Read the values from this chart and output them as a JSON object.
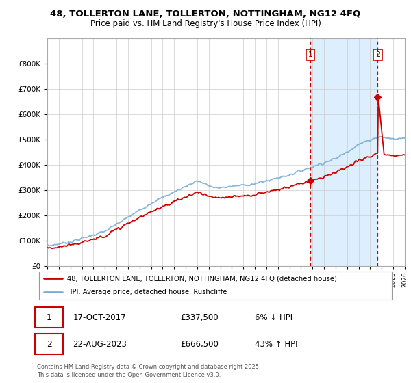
{
  "title_line1": "48, TOLLERTON LANE, TOLLERTON, NOTTINGHAM, NG12 4FQ",
  "title_line2": "Price paid vs. HM Land Registry's House Price Index (HPI)",
  "legend_line1": "48, TOLLERTON LANE, TOLLERTON, NOTTINGHAM, NG12 4FQ (detached house)",
  "legend_line2": "HPI: Average price, detached house, Rushcliffe",
  "transaction1_label": "1",
  "transaction1_date": "17-OCT-2017",
  "transaction1_price": "£337,500",
  "transaction1_hpi": "6% ↓ HPI",
  "transaction2_label": "2",
  "transaction2_date": "22-AUG-2023",
  "transaction2_price": "£666,500",
  "transaction2_hpi": "43% ↑ HPI",
  "footer": "Contains HM Land Registry data © Crown copyright and database right 2025.\nThis data is licensed under the Open Government Licence v3.0.",
  "red_color": "#cc0000",
  "blue_color": "#7aadd4",
  "shaded_color": "#ddeeff",
  "grid_color": "#cccccc",
  "vline_color": "#cc0000",
  "bg_color": "#ffffff",
  "ylim_max": 900000,
  "ylim_min": 0,
  "year_start": 1995,
  "year_end": 2026,
  "yr1": 2017.8,
  "yr2": 2023.65,
  "purchase1_price": 337500,
  "purchase2_price": 666500
}
